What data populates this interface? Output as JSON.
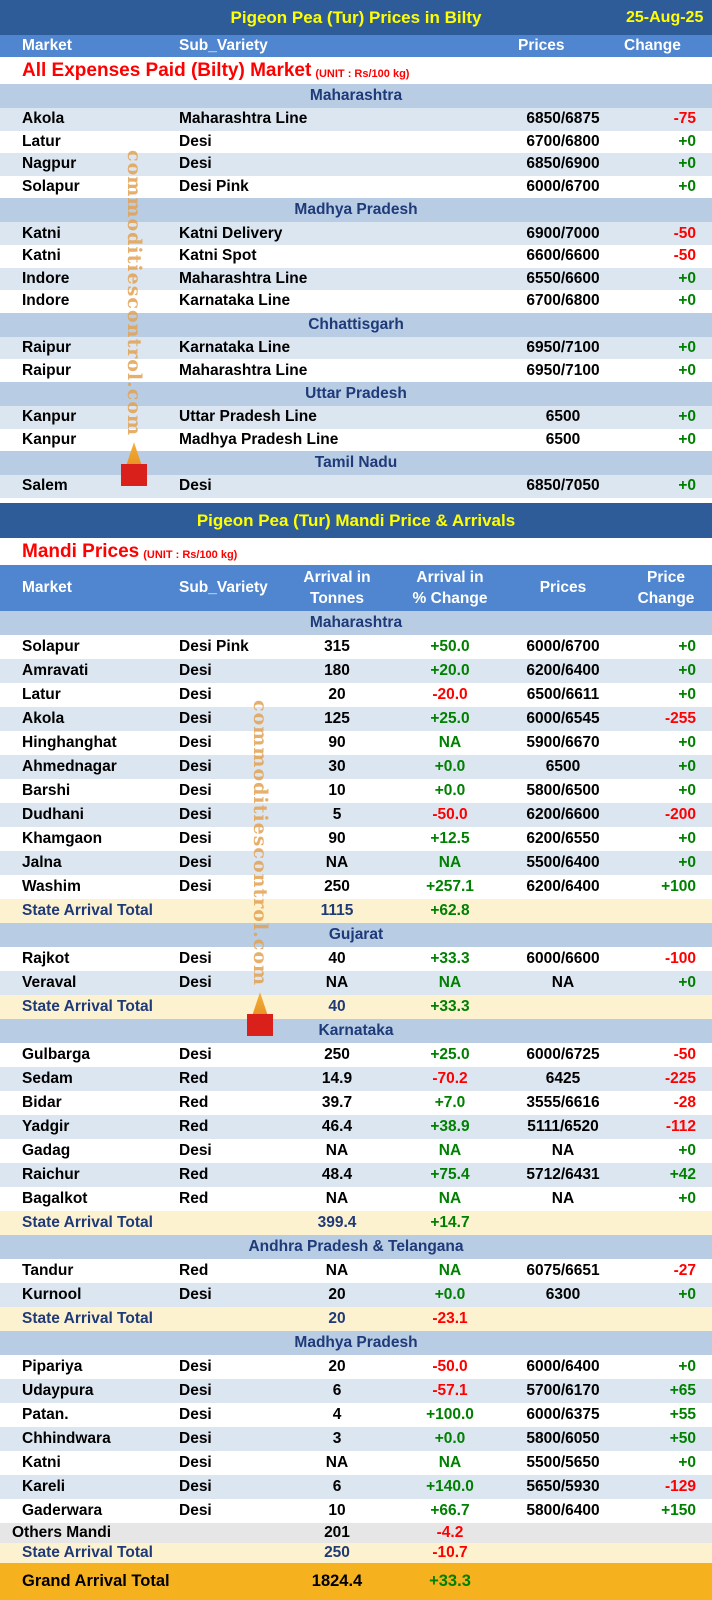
{
  "bilty": {
    "title": "Pigeon Pea (Tur) Prices in Bilty",
    "date": "25-Aug-25",
    "headers": {
      "market": "Market",
      "sub_variety": "Sub_Variety",
      "prices": "Prices",
      "change": "Change"
    },
    "section_title": "All Expenses Paid (Bilty) Market",
    "unit": "(UNIT : Rs/100 kg)",
    "groups": [
      {
        "state": "Maharashtra",
        "rows": [
          {
            "market": "Akola",
            "variety": "Maharashtra Line",
            "prices": "6850/6875",
            "change": "-75"
          },
          {
            "market": "Latur",
            "variety": "Desi",
            "prices": "6700/6800",
            "change": "+0"
          },
          {
            "market": "Nagpur",
            "variety": "Desi",
            "prices": "6850/6900",
            "change": "+0"
          },
          {
            "market": "Solapur",
            "variety": "Desi Pink",
            "prices": "6000/6700",
            "change": "+0"
          }
        ]
      },
      {
        "state": "Madhya Pradesh",
        "rows": [
          {
            "market": "Katni",
            "variety": "Katni Delivery",
            "prices": "6900/7000",
            "change": "-50"
          },
          {
            "market": "Katni",
            "variety": "Katni Spot",
            "prices": "6600/6600",
            "change": "-50"
          },
          {
            "market": "Indore",
            "variety": "Maharashtra Line",
            "prices": "6550/6600",
            "change": "+0"
          },
          {
            "market": "Indore",
            "variety": "Karnataka Line",
            "prices": "6700/6800",
            "change": "+0"
          }
        ]
      },
      {
        "state": "Chhattisgarh",
        "rows": [
          {
            "market": "Raipur",
            "variety": "Karnataka Line",
            "prices": "6950/7100",
            "change": "+0"
          },
          {
            "market": "Raipur",
            "variety": "Maharashtra Line",
            "prices": "6950/7100",
            "change": "+0"
          }
        ]
      },
      {
        "state": "Uttar Pradesh",
        "rows": [
          {
            "market": "Kanpur",
            "variety": "Uttar Pradesh Line",
            "prices": "6500",
            "change": "+0"
          },
          {
            "market": "Kanpur",
            "variety": "Madhya Pradesh Line",
            "prices": "6500",
            "change": "+0"
          }
        ]
      },
      {
        "state": "Tamil Nadu",
        "rows": [
          {
            "market": "Salem",
            "variety": "Desi",
            "prices": "6850/7050",
            "change": "+0"
          }
        ]
      }
    ]
  },
  "mandi": {
    "title": "Pigeon Pea (Tur) Mandi Price & Arrivals",
    "section_title": "Mandi Prices",
    "unit": "(UNIT : Rs/100 kg)",
    "headers": {
      "market": "Market",
      "sub_variety": "Sub_Variety",
      "arrival_l1": "Arrival in",
      "arrival_l2": "Tonnes",
      "arrival_pct_l1": "Arrival  in",
      "arrival_pct_l2": "% Change",
      "prices": "Prices",
      "price_change_l1": "Price",
      "price_change_l2": "Change"
    },
    "groups": [
      {
        "state": "Maharashtra",
        "rows": [
          {
            "market": "Solapur",
            "variety": "Desi Pink",
            "arrival": "315",
            "pct": "+50.0",
            "prices": "6000/6700",
            "change": "+0"
          },
          {
            "market": "Amravati",
            "variety": "Desi",
            "arrival": "180",
            "pct": "+20.0",
            "prices": "6200/6400",
            "change": "+0"
          },
          {
            "market": "Latur",
            "variety": "Desi",
            "arrival": "20",
            "pct": "-20.0",
            "prices": "6500/6611",
            "change": "+0"
          },
          {
            "market": "Akola",
            "variety": "Desi",
            "arrival": "125",
            "pct": "+25.0",
            "prices": "6000/6545",
            "change": "-255"
          },
          {
            "market": "Hinghanghat",
            "variety": "Desi",
            "arrival": "90",
            "pct": "NA",
            "prices": "5900/6670",
            "change": "+0"
          },
          {
            "market": "Ahmednagar",
            "variety": "Desi",
            "arrival": "30",
            "pct": "+0.0",
            "prices": "6500",
            "change": "+0"
          },
          {
            "market": "Barshi",
            "variety": "Desi",
            "arrival": "10",
            "pct": "+0.0",
            "prices": "5800/6500",
            "change": "+0"
          },
          {
            "market": "Dudhani",
            "variety": "Desi",
            "arrival": "5",
            "pct": "-50.0",
            "prices": "6200/6600",
            "change": "-200"
          },
          {
            "market": "Khamgaon",
            "variety": "Desi",
            "arrival": "90",
            "pct": "+12.5",
            "prices": "6200/6550",
            "change": "+0"
          },
          {
            "market": "Jalna",
            "variety": "Desi",
            "arrival": "NA",
            "pct": "NA",
            "prices": "5500/6400",
            "change": "+0"
          },
          {
            "market": "Washim",
            "variety": "Desi",
            "arrival": "250",
            "pct": "+257.1",
            "prices": "6200/6400",
            "change": "+100"
          }
        ],
        "total": {
          "label": "State Arrival Total",
          "arrival": "1115",
          "pct": "+62.8"
        }
      },
      {
        "state": "Gujarat",
        "rows": [
          {
            "market": "Rajkot",
            "variety": "Desi",
            "arrival": "40",
            "pct": "+33.3",
            "prices": "6000/6600",
            "change": "-100"
          },
          {
            "market": "Veraval",
            "variety": "Desi",
            "arrival": "NA",
            "pct": "NA",
            "prices": "NA",
            "change": "+0"
          }
        ],
        "total": {
          "label": "State Arrival Total",
          "arrival": "40",
          "pct": "+33.3"
        }
      },
      {
        "state": "Karnataka",
        "rows": [
          {
            "market": "Gulbarga",
            "variety": "Desi",
            "arrival": "250",
            "pct": "+25.0",
            "prices": "6000/6725",
            "change": "-50"
          },
          {
            "market": "Sedam",
            "variety": "Red",
            "arrival": "14.9",
            "pct": "-70.2",
            "prices": "6425",
            "change": "-225"
          },
          {
            "market": "Bidar",
            "variety": "Red",
            "arrival": "39.7",
            "pct": "+7.0",
            "prices": "3555/6616",
            "change": "-28"
          },
          {
            "market": "Yadgir",
            "variety": "Red",
            "arrival": "46.4",
            "pct": "+38.9",
            "prices": "5111/6520",
            "change": "-112"
          },
          {
            "market": "Gadag",
            "variety": "Desi",
            "arrival": "NA",
            "pct": "NA",
            "prices": "NA",
            "change": "+0"
          },
          {
            "market": "Raichur",
            "variety": "Red",
            "arrival": "48.4",
            "pct": "+75.4",
            "prices": "5712/6431",
            "change": "+42"
          },
          {
            "market": "Bagalkot",
            "variety": "Red",
            "arrival": "NA",
            "pct": "NA",
            "prices": "NA",
            "change": "+0"
          }
        ],
        "total": {
          "label": "State Arrival Total",
          "arrival": "399.4",
          "pct": "+14.7"
        }
      },
      {
        "state": "Andhra Pradesh & Telangana",
        "rows": [
          {
            "market": "Tandur",
            "variety": "Red",
            "arrival": "NA",
            "pct": "NA",
            "prices": "6075/6651",
            "change": "-27"
          },
          {
            "market": "Kurnool",
            "variety": "Desi",
            "arrival": "20",
            "pct": "+0.0",
            "prices": "6300",
            "change": "+0"
          }
        ],
        "total": {
          "label": "State Arrival Total",
          "arrival": "20",
          "pct": "-23.1"
        }
      },
      {
        "state": "Madhya Pradesh",
        "rows": [
          {
            "market": "Pipariya",
            "variety": "Desi",
            "arrival": "20",
            "pct": "-50.0",
            "prices": "6000/6400",
            "change": "+0"
          },
          {
            "market": "Udaypura",
            "variety": "Desi",
            "arrival": "6",
            "pct": "-57.1",
            "prices": "5700/6170",
            "change": "+65"
          },
          {
            "market": "Patan.",
            "variety": "Desi",
            "arrival": "4",
            "pct": "+100.0",
            "prices": "6000/6375",
            "change": "+55"
          },
          {
            "market": "Chhindwara",
            "variety": "Desi",
            "arrival": "3",
            "pct": "+0.0",
            "prices": "5800/6050",
            "change": "+50"
          },
          {
            "market": "Katni",
            "variety": "Desi",
            "arrival": "NA",
            "pct": "NA",
            "prices": "5500/5650",
            "change": "+0"
          },
          {
            "market": "Kareli",
            "variety": "Desi",
            "arrival": "6",
            "pct": "+140.0",
            "prices": "5650/5930",
            "change": "-129"
          },
          {
            "market": "Gaderwara",
            "variety": "Desi",
            "arrival": "10",
            "pct": "+66.7",
            "prices": "5800/6400",
            "change": "+150"
          }
        ],
        "others": {
          "label": "Others Mandi",
          "arrival": "201",
          "pct": "-4.2"
        },
        "total": {
          "label": "State Arrival Total",
          "arrival": "250",
          "pct": "-10.7"
        }
      }
    ],
    "grand_total": {
      "label": "Grand Arrival Total",
      "arrival": "1824.4",
      "pct": "+33.3"
    }
  },
  "watermark": {
    "text": "commoditiescontrol.com",
    "colors": {
      "text": "#e3a253",
      "logo_top": "#f3b13a",
      "logo_bottom": "#d9201a"
    }
  },
  "colors": {
    "title_bg": "#2e5c99",
    "header_bg": "#4f86cf",
    "state_bg": "#b8cce4",
    "stripe": "#dce6f1",
    "total_bg": "#fdf2d0",
    "grand_bg": "#f6b21e",
    "positive": "#008000",
    "negative": "#ff0000"
  }
}
